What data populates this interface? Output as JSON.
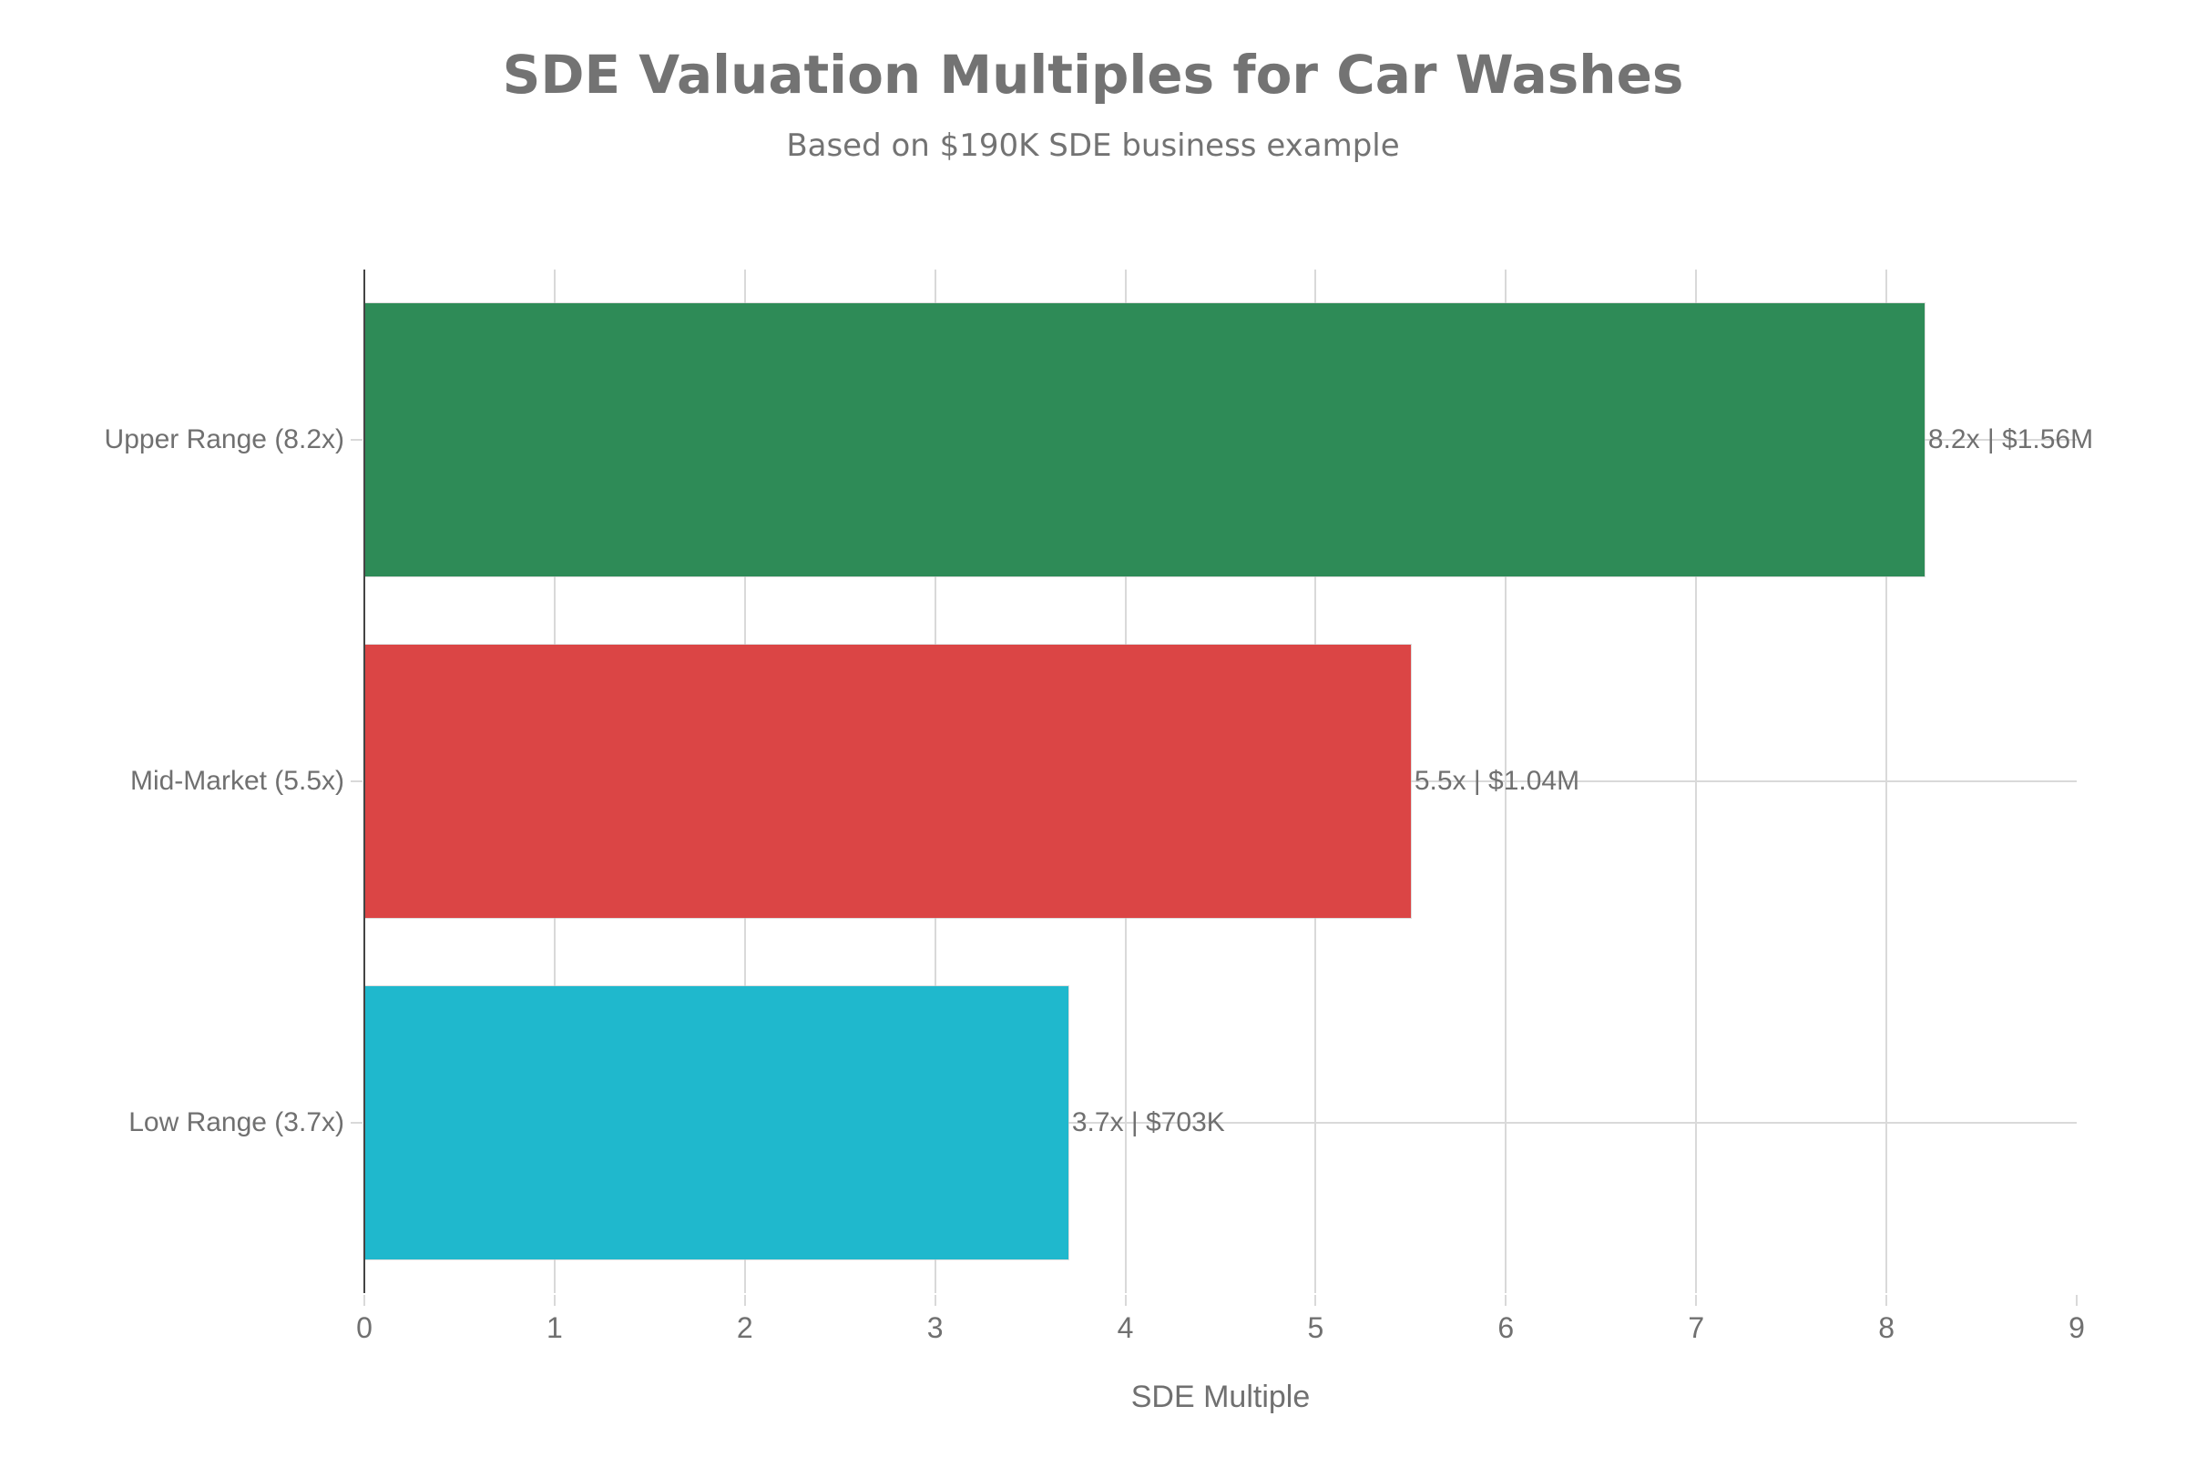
{
  "title": "SDE Valuation Multiples for Car Washes",
  "subtitle": "Based on $190K SDE business example",
  "xaxis": {
    "label": "SDE Multiple",
    "ticks": [
      "0",
      "1",
      "2",
      "3",
      "4",
      "5",
      "6",
      "7",
      "8",
      "9"
    ]
  },
  "bars": [
    {
      "category": "Upper Range (8.2x)",
      "value": 8.2,
      "label": "8.2x | $1.56M",
      "color": "#2e8b57"
    },
    {
      "category": "Mid-Market (5.5x)",
      "value": 5.5,
      "label": "5.5x | $1.04M",
      "color": "#db4545"
    },
    {
      "category": "Low Range (3.7x)",
      "value": 3.7,
      "label": "3.7x | $703K",
      "color": "#1fb8cd"
    }
  ],
  "chart_data": {
    "type": "bar",
    "orientation": "horizontal",
    "title": "SDE Valuation Multiples for Car Washes",
    "subtitle": "Based on $190K SDE business example",
    "categories": [
      "Upper Range (8.2x)",
      "Mid-Market (5.5x)",
      "Low Range (3.7x)"
    ],
    "values": [
      8.2,
      5.5,
      3.7
    ],
    "data_labels": [
      "8.2x | $1.56M",
      "5.5x | $1.04M",
      "3.7x | $703K"
    ],
    "valuations": [
      "$1.56M",
      "$1.04M",
      "$703K"
    ],
    "colors": [
      "#2e8b57",
      "#db4545",
      "#1fb8cd"
    ],
    "xlabel": "SDE Multiple",
    "ylabel": "",
    "xlim": [
      0,
      9
    ],
    "xticks": [
      0,
      1,
      2,
      3,
      4,
      5,
      6,
      7,
      8,
      9
    ],
    "grid": true,
    "legend": "none"
  }
}
